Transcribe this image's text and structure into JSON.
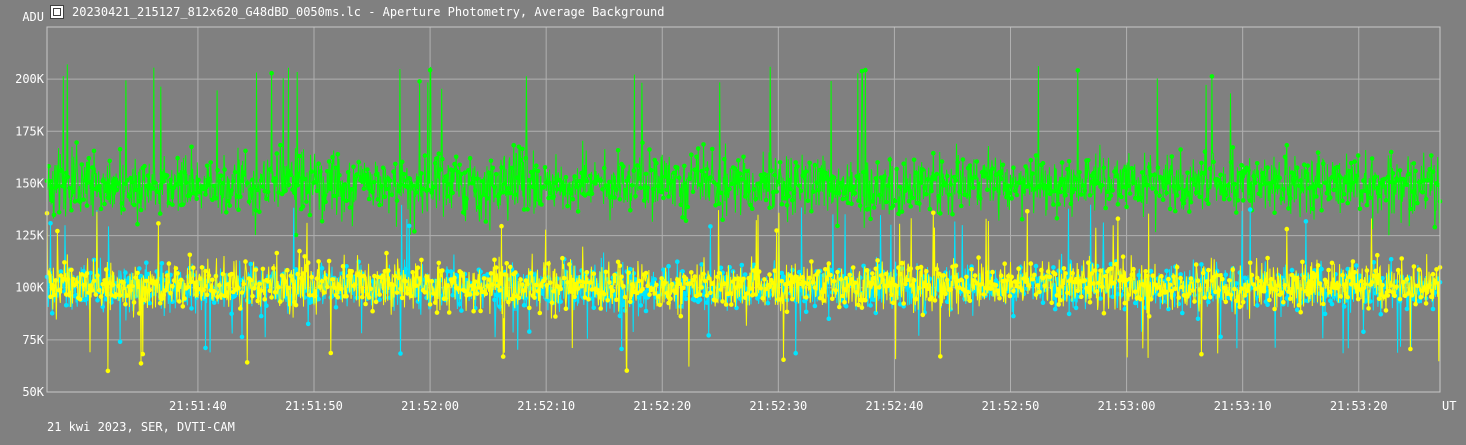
{
  "window": {
    "title": "20230421_215127_812x620_G48dBD_0050ms.lc - Aperture Photometry, Average Background",
    "footer": "21 kwi 2023, SER, DVTI-CAM"
  },
  "icons": {
    "app": "app-icon"
  },
  "colors": {
    "background": "#808080",
    "grid": "#b0b0b0",
    "green": "#00ff00",
    "cyan": "#00e5ff",
    "yellow": "#ffff00"
  },
  "chart_data": {
    "type": "line",
    "title": "",
    "ylabel": "ADU",
    "xlabel": "UT",
    "ylim": [
      50000,
      225000
    ],
    "xlim": [
      "21:51:27",
      "21:53:27"
    ],
    "x_ticks": [
      "21:51:40",
      "21:51:50",
      "21:52:00",
      "21:52:10",
      "21:52:20",
      "21:52:30",
      "21:52:40",
      "21:52:50",
      "21:53:00",
      "21:53:10",
      "21:53:20"
    ],
    "y_ticks": [
      {
        "value": 50000,
        "label": "50K"
      },
      {
        "value": 75000,
        "label": "75K"
      },
      {
        "value": 100000,
        "label": "100K"
      },
      {
        "value": 125000,
        "label": "125K"
      },
      {
        "value": 150000,
        "label": "150K"
      },
      {
        "value": 175000,
        "label": "175K"
      },
      {
        "value": 200000,
        "label": "200K"
      }
    ],
    "grid": true,
    "markers": true,
    "sample_interval_s": 0.05,
    "series": [
      {
        "color": "#00ff00",
        "mean": 150000,
        "spread": 15000,
        "low": 125000,
        "high": 208000
      },
      {
        "color": "#00e5ff",
        "mean": 100000,
        "spread": 11000,
        "low": 68000,
        "high": 140000
      },
      {
        "color": "#ffff00",
        "mean": 101000,
        "spread": 11500,
        "low": 60000,
        "high": 138000
      }
    ]
  }
}
